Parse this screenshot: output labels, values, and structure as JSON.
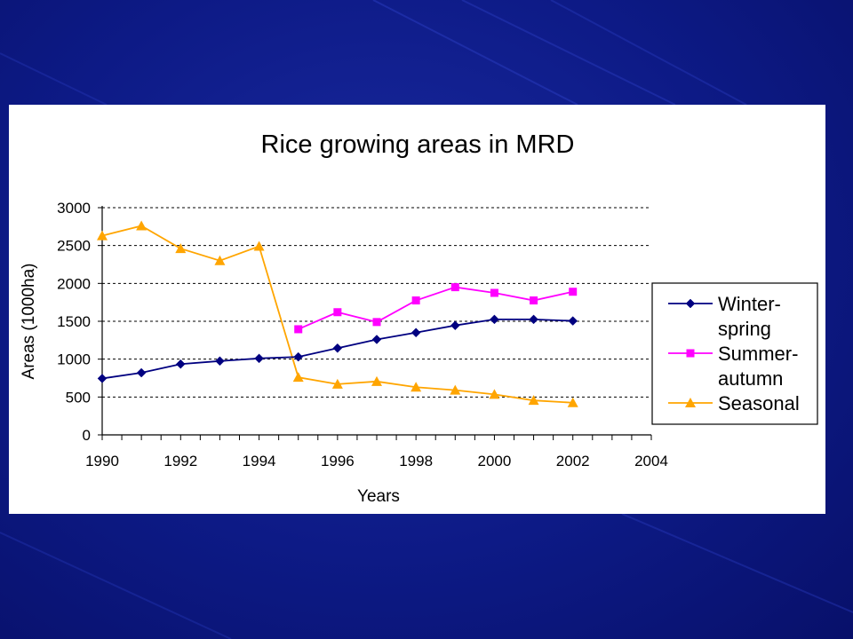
{
  "colors": {
    "background": "#0d1a86",
    "panel": "#ffffff",
    "winter_spring": "#000080",
    "summer_autumn": "#ff00ff",
    "seasonal": "#ffa500"
  },
  "chart_data": {
    "type": "line",
    "title": "Rice growing areas in MRD",
    "xlabel": "Years",
    "ylabel": "Areas (1000ha)",
    "xlim": [
      1990,
      2004
    ],
    "ylim": [
      0,
      3000
    ],
    "xticks": [
      "1990",
      "1992",
      "1994",
      "1996",
      "1998",
      "2000",
      "2002",
      "2004"
    ],
    "yticks": [
      "0",
      "500",
      "1000",
      "1500",
      "2000",
      "2500",
      "3000"
    ],
    "grid": "horizontal dashed",
    "legend_position": "right",
    "series": [
      {
        "name": "Winter-spring",
        "legend_lines": [
          "Winter-",
          "spring"
        ],
        "marker": "diamond",
        "color": "#000080",
        "x": [
          1990,
          1991,
          1992,
          1993,
          1994,
          1995,
          1996,
          1997,
          1998,
          1999,
          2000,
          2001,
          2002
        ],
        "values": [
          745,
          820,
          935,
          975,
          1010,
          1030,
          1145,
          1260,
          1350,
          1445,
          1525,
          1525,
          1505
        ]
      },
      {
        "name": "Summer-autumn",
        "legend_lines": [
          "Summer-",
          "autumn"
        ],
        "marker": "square",
        "color": "#ff00ff",
        "x": [
          1995,
          1996,
          1997,
          1998,
          1999,
          2000,
          2001,
          2002
        ],
        "values": [
          1395,
          1620,
          1490,
          1775,
          1950,
          1875,
          1775,
          1890
        ]
      },
      {
        "name": "Seasonal",
        "legend_lines": [
          "Seasonal"
        ],
        "marker": "triangle",
        "color": "#ffa500",
        "x": [
          1990,
          1991,
          1992,
          1993,
          1994,
          1995,
          1996,
          1997,
          1998,
          1999,
          2000,
          2001,
          2002
        ],
        "values": [
          2630,
          2760,
          2460,
          2300,
          2490,
          760,
          670,
          705,
          630,
          590,
          535,
          455,
          425
        ]
      }
    ]
  }
}
